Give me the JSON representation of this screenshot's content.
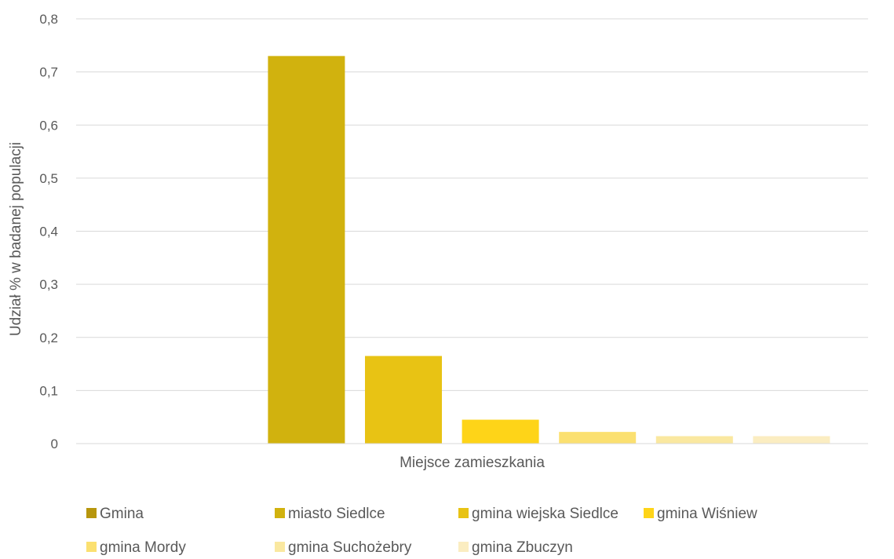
{
  "chart_data": {
    "type": "bar",
    "title": "",
    "xlabel": "Miejsce zamieszkania",
    "ylabel": "Udział % w badanej populacji",
    "ylim": [
      0,
      0.8
    ],
    "y_ticks": [
      "0",
      "0,1",
      "0,2",
      "0,3",
      "0,4",
      "0,5",
      "0,6",
      "0,7",
      "0,8"
    ],
    "grid": true,
    "legend_position": "bottom",
    "series": [
      {
        "name": "Gmina",
        "value": 0,
        "color": "#b7960d"
      },
      {
        "name": "miasto Siedlce",
        "value": 0.73,
        "color": "#d1b20e"
      },
      {
        "name": "gmina wiejska Siedlce",
        "value": 0.165,
        "color": "#e8c314"
      },
      {
        "name": "gmina Wiśniew",
        "value": 0.045,
        "color": "#fed418"
      },
      {
        "name": "gmina Mordy",
        "value": 0.022,
        "color": "#fbe070"
      },
      {
        "name": "gmina Suchożebry",
        "value": 0.014,
        "color": "#fae8a0"
      },
      {
        "name": "gmina Zbuczyn",
        "value": 0.014,
        "color": "#fbedc1"
      }
    ]
  }
}
